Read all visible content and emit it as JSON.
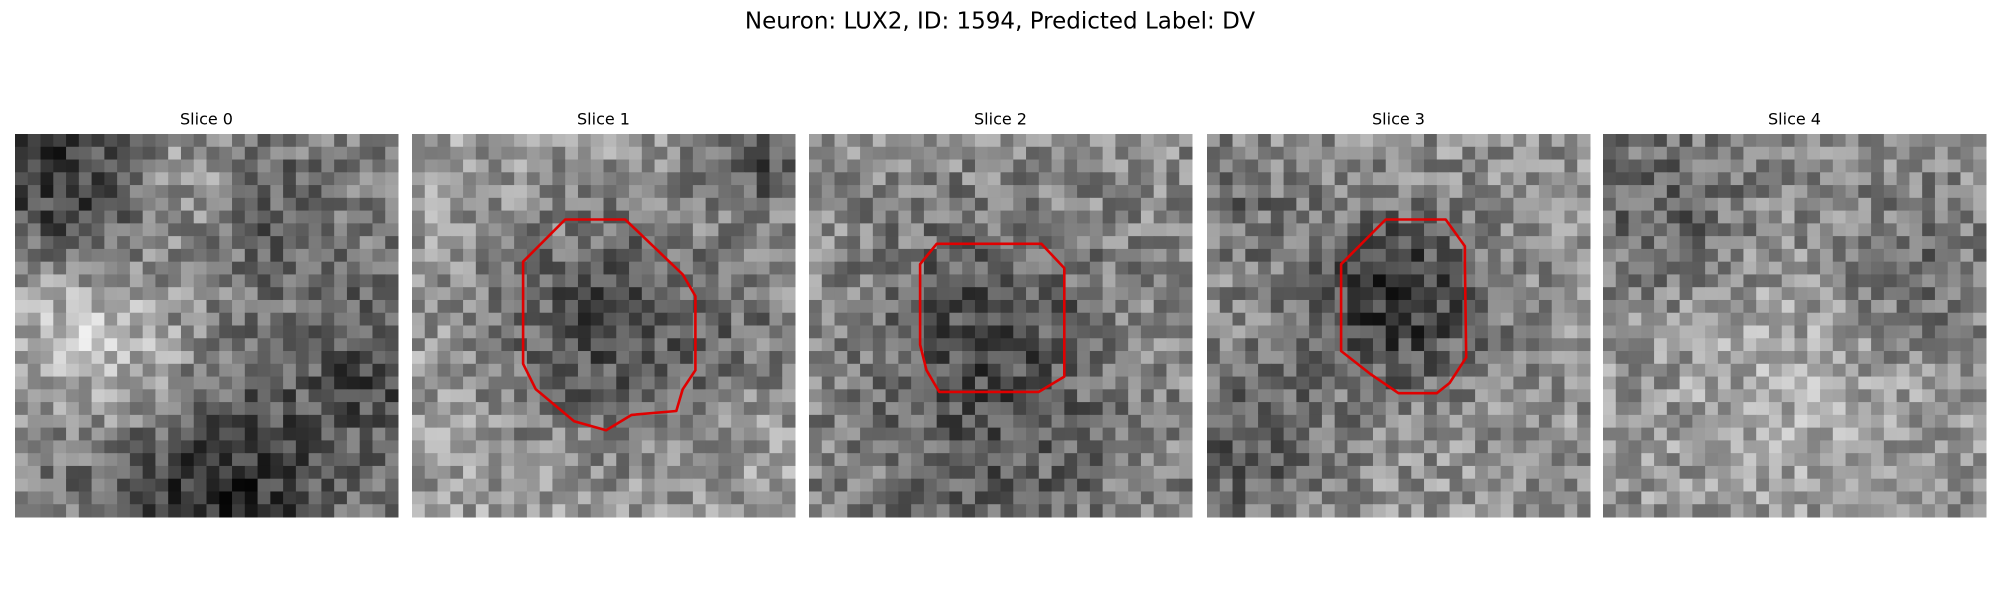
{
  "title": "Neuron: LUX2, ID: 1594, Predicted Label: DV",
  "panels": [
    {
      "title": "Slice 0"
    },
    {
      "title": "Slice 1"
    },
    {
      "title": "Slice 2"
    },
    {
      "title": "Slice 3"
    },
    {
      "title": "Slice 4"
    }
  ]
}
